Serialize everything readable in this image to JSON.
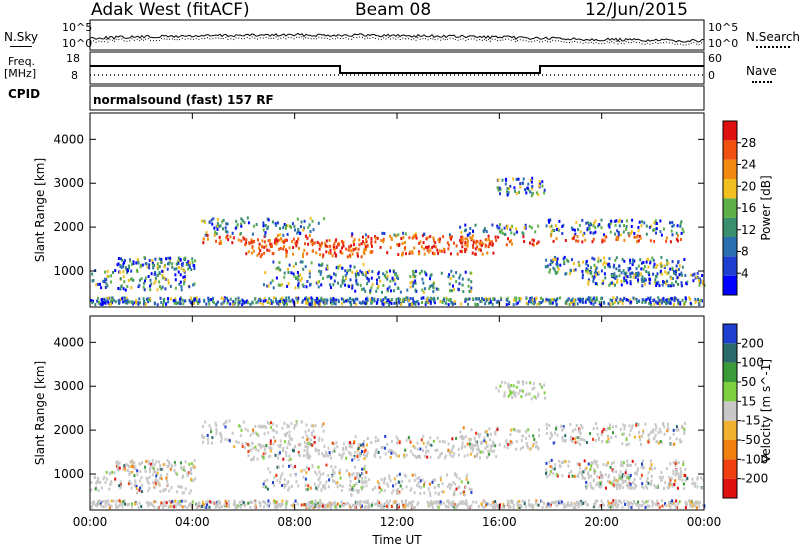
{
  "header": {
    "station": "Adak West (fitACF)",
    "beam": "Beam 08",
    "date": "12/Jun/2015"
  },
  "left_labels": {
    "nsky": "N.Sky",
    "freq": "Freq.",
    "freq_unit": "[MHz]",
    "cpid": "CPID"
  },
  "right_labels": {
    "nsearch": "N.Search",
    "nave": "Nave"
  },
  "ticks": {
    "noise_top": "10^5",
    "noise_bottom": "10^0",
    "freq_top": "18",
    "freq_bottom": "8",
    "nave_top": "60",
    "nave_bottom": "0"
  },
  "cpid_text": "normalsound (fast) 157 RF",
  "colors": {
    "power_scale": [
      "#0000ff",
      "#1f3fd0",
      "#2a6fb0",
      "#3a8f6e",
      "#5fb04a",
      "#f0c020",
      "#f08a10",
      "#f05010",
      "#e01010"
    ],
    "velocity_scale": [
      "#1f3fd0",
      "#2a6a6a",
      "#3a9a3a",
      "#7fd040",
      "#c8c8c8",
      "#f0b030",
      "#f08010",
      "#f04010",
      "#e01010"
    ]
  },
  "chart_data": [
    {
      "type": "heatmap",
      "title": "",
      "xlabel": "Time UT",
      "ylabel": "Slant Range [km]",
      "x_ticks": [
        "00:00",
        "04:00",
        "08:00",
        "12:00",
        "16:00",
        "20:00",
        "00:00"
      ],
      "y_ticks": [
        "1000",
        "2000",
        "3000",
        "4000"
      ],
      "ylim": [
        180,
        4600
      ],
      "colorbar_label": "Power [dB]",
      "colorbar_ticks": [
        "4",
        "8",
        "12",
        "16",
        "20",
        "24",
        "28"
      ],
      "colorbar_range": [
        0,
        30
      ]
    },
    {
      "type": "heatmap",
      "title": "",
      "xlabel": "Time UT",
      "ylabel": "Slant Range [km]",
      "x_ticks": [
        "00:00",
        "04:00",
        "08:00",
        "12:00",
        "16:00",
        "20:00",
        "00:00"
      ],
      "y_ticks": [
        "1000",
        "2000",
        "3000",
        "4000"
      ],
      "ylim": [
        180,
        4600
      ],
      "colorbar_label": "Velocity [m s^-1]",
      "colorbar_ticks": [
        "200",
        "100",
        "50",
        "15",
        "-15",
        "-50",
        "-100",
        "-200"
      ],
      "colorbar_range": [
        -250,
        250
      ]
    }
  ]
}
